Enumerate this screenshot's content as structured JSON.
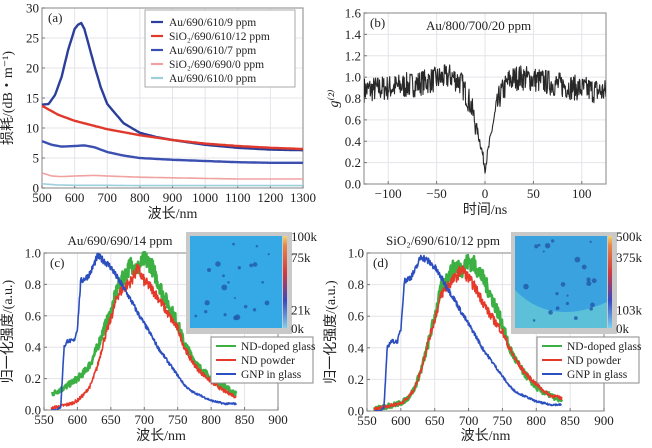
{
  "chart_data": [
    {
      "id": "a",
      "type": "line",
      "panel_label": "(a)",
      "title": "",
      "xlabel": "波长/nm",
      "ylabel": "损耗/(dB・m⁻¹)",
      "xlim": [
        500,
        1300
      ],
      "ylim": [
        0,
        30
      ],
      "xticks": [
        500,
        600,
        700,
        800,
        900,
        1000,
        1100,
        1200,
        1300
      ],
      "yticks": [
        0,
        5,
        10,
        15,
        20,
        25,
        30
      ],
      "grid": true,
      "legend_position": "top-right",
      "series": [
        {
          "name": "Au/690/610/9 ppm",
          "color": "#2b3f9a",
          "x": [
            500,
            520,
            540,
            560,
            580,
            600,
            610,
            620,
            630,
            640,
            660,
            680,
            700,
            750,
            800,
            850,
            900,
            950,
            1000,
            1100,
            1200,
            1300
          ],
          "y": [
            13.9,
            14.0,
            15.5,
            18.5,
            23,
            26.5,
            27.2,
            27.5,
            26.5,
            24.5,
            20.5,
            16.8,
            14.0,
            10.8,
            9.2,
            8.5,
            8.0,
            7.6,
            7.2,
            6.7,
            6.4,
            6.3
          ]
        },
        {
          "name": "SiO₂/690/610/12 ppm",
          "color": "#e0392c",
          "x": [
            500,
            550,
            600,
            650,
            700,
            750,
            800,
            850,
            900,
            1000,
            1100,
            1200,
            1300
          ],
          "y": [
            13.7,
            12.2,
            11.2,
            10.5,
            9.8,
            9.3,
            8.8,
            8.4,
            8.0,
            7.4,
            7.0,
            6.7,
            6.5
          ]
        },
        {
          "name": "Au/690/610/7 ppm",
          "color": "#3a4fb0",
          "x": [
            500,
            530,
            560,
            600,
            630,
            660,
            700,
            750,
            800,
            900,
            1000,
            1100,
            1200,
            1300
          ],
          "y": [
            7.8,
            7.2,
            6.9,
            7.0,
            7.1,
            6.8,
            6.0,
            5.4,
            5.0,
            4.7,
            4.5,
            4.3,
            4.2,
            4.2
          ]
        },
        {
          "name": "SiO₂/690/690/0 ppm",
          "color": "#f0a2a0",
          "x": [
            500,
            530,
            560,
            600,
            660,
            700,
            800,
            900,
            1000,
            1100,
            1200,
            1300
          ],
          "y": [
            2.5,
            2.0,
            1.9,
            2.0,
            2.1,
            2.0,
            1.8,
            1.7,
            1.6,
            1.5,
            1.5,
            1.5
          ]
        },
        {
          "name": "Au/690/610/0 ppm",
          "color": "#9ccfdc",
          "x": [
            500,
            550,
            600,
            700,
            800,
            900,
            1000,
            1100,
            1200,
            1300
          ],
          "y": [
            0.7,
            0.5,
            0.45,
            0.45,
            0.4,
            0.4,
            0.4,
            0.4,
            0.4,
            0.4
          ]
        }
      ]
    },
    {
      "id": "b",
      "type": "line",
      "panel_label": "(b)",
      "title": "Au/800/700/20 ppm",
      "xlabel": "时间/ns",
      "ylabel": "g⁽²⁾",
      "xlim": [
        -125,
        125
      ],
      "ylim": [
        0.0,
        1.6
      ],
      "xticks": [
        -100,
        -50,
        0,
        50,
        100
      ],
      "yticks": [
        0.0,
        0.2,
        0.4,
        0.6,
        0.8,
        1.0,
        1.2,
        1.4,
        1.6
      ],
      "grid": true,
      "series": [
        {
          "name": "g2",
          "color": "#111111",
          "x": [
            -125,
            -100,
            -75,
            -50,
            -35,
            -25,
            -15,
            -8,
            -4,
            -1,
            0,
            1,
            4,
            8,
            15,
            25,
            35,
            50,
            75,
            100,
            125
          ],
          "y": [
            0.88,
            0.9,
            0.93,
            0.98,
            1.01,
            0.95,
            0.75,
            0.5,
            0.35,
            0.2,
            0.15,
            0.2,
            0.35,
            0.55,
            0.82,
            0.97,
            1.0,
            0.98,
            0.93,
            0.89,
            0.86
          ],
          "noise_amplitude": 0.12
        }
      ]
    },
    {
      "id": "c",
      "type": "line",
      "panel_label": "(c)",
      "title": "Au/690/690/14 ppm",
      "xlabel": "波长/nm",
      "ylabel": "归一化强度/(a.u.)",
      "xlim": [
        550,
        900
      ],
      "ylim": [
        0.0,
        1.0
      ],
      "xticks": [
        550,
        600,
        650,
        700,
        750,
        800,
        850,
        900
      ],
      "yticks": [
        0.0,
        0.2,
        0.4,
        0.6,
        0.8,
        1.0
      ],
      "grid": true,
      "legend_position": "right",
      "inset": {
        "colorbar_ticks": [
          "100k",
          "75k",
          "21k",
          "0k"
        ]
      },
      "series": [
        {
          "name": "ND-doped glass",
          "color": "#3cb043",
          "x": [
            561,
            570,
            580,
            590,
            600,
            610,
            620,
            630,
            640,
            650,
            660,
            670,
            680,
            690,
            700,
            710,
            720,
            730,
            740,
            750,
            760,
            770,
            780,
            790,
            800,
            810,
            820,
            830,
            838
          ],
          "y": [
            0.1,
            0.12,
            0.14,
            0.17,
            0.2,
            0.24,
            0.3,
            0.4,
            0.52,
            0.62,
            0.78,
            0.85,
            0.93,
            0.9,
            0.96,
            0.93,
            0.82,
            0.72,
            0.64,
            0.55,
            0.42,
            0.35,
            0.28,
            0.24,
            0.2,
            0.17,
            0.15,
            0.12,
            0.1
          ]
        },
        {
          "name": "ND powder",
          "color": "#e53a2a",
          "x": [
            561,
            570,
            580,
            590,
            600,
            610,
            620,
            630,
            640,
            650,
            660,
            670,
            680,
            690,
            700,
            710,
            720,
            730,
            740,
            750,
            760,
            770,
            780,
            790,
            800,
            810,
            820,
            830,
            838
          ],
          "y": [
            0.01,
            0.02,
            0.03,
            0.04,
            0.06,
            0.1,
            0.16,
            0.28,
            0.45,
            0.58,
            0.73,
            0.78,
            0.82,
            0.9,
            0.82,
            0.78,
            0.72,
            0.65,
            0.58,
            0.52,
            0.4,
            0.32,
            0.26,
            0.22,
            0.18,
            0.15,
            0.12,
            0.1,
            0.08
          ]
        },
        {
          "name": "GNP in glass",
          "color": "#2c4fbf",
          "x": [
            561,
            570,
            575,
            580,
            585,
            595,
            600,
            605,
            615,
            620,
            630,
            640,
            650,
            660,
            670,
            680,
            690,
            700,
            710,
            720,
            730,
            740,
            750,
            760,
            770,
            780,
            790,
            800,
            810,
            820,
            830,
            838
          ],
          "y": [
            0.0,
            0.0,
            0.02,
            0.4,
            0.44,
            0.44,
            0.52,
            0.82,
            0.85,
            0.88,
            0.98,
            0.95,
            0.91,
            0.84,
            0.77,
            0.7,
            0.62,
            0.55,
            0.48,
            0.4,
            0.34,
            0.28,
            0.22,
            0.16,
            0.12,
            0.1,
            0.08,
            0.06,
            0.05,
            0.04,
            0.04,
            0.04
          ]
        }
      ]
    },
    {
      "id": "d",
      "type": "line",
      "panel_label": "(d)",
      "title": "SiO₂/690/610/12 ppm",
      "xlabel": "波长/nm",
      "ylabel": "归一化强度/(a.u.)",
      "xlim": [
        550,
        900
      ],
      "ylim": [
        0.0,
        1.0
      ],
      "xticks": [
        550,
        600,
        650,
        700,
        750,
        800,
        850,
        900
      ],
      "yticks": [
        0.0,
        0.2,
        0.4,
        0.6,
        0.8,
        1.0
      ],
      "grid": true,
      "legend_position": "right",
      "inset": {
        "colorbar_ticks": [
          "500k",
          "375k",
          "103k",
          "0k"
        ]
      },
      "series": [
        {
          "name": "ND-doped glass",
          "color": "#3cb043",
          "x": [
            561,
            570,
            580,
            590,
            600,
            610,
            620,
            630,
            640,
            650,
            660,
            670,
            680,
            690,
            700,
            710,
            720,
            730,
            740,
            750,
            760,
            770,
            780,
            790,
            800,
            810,
            820,
            830,
            838
          ],
          "y": [
            0.01,
            0.02,
            0.03,
            0.04,
            0.05,
            0.08,
            0.14,
            0.26,
            0.42,
            0.6,
            0.78,
            0.85,
            0.92,
            0.9,
            0.95,
            0.92,
            0.85,
            0.76,
            0.66,
            0.55,
            0.4,
            0.32,
            0.25,
            0.2,
            0.15,
            0.12,
            0.1,
            0.08,
            0.06
          ]
        },
        {
          "name": "ND powder",
          "color": "#e53a2a",
          "x": [
            561,
            570,
            580,
            590,
            600,
            610,
            620,
            630,
            640,
            650,
            660,
            670,
            680,
            690,
            700,
            710,
            720,
            730,
            740,
            750,
            760,
            770,
            780,
            790,
            800,
            810,
            820,
            830,
            838
          ],
          "y": [
            0.01,
            0.02,
            0.03,
            0.04,
            0.05,
            0.08,
            0.14,
            0.26,
            0.43,
            0.58,
            0.74,
            0.8,
            0.84,
            0.9,
            0.84,
            0.78,
            0.7,
            0.62,
            0.56,
            0.5,
            0.4,
            0.32,
            0.26,
            0.21,
            0.17,
            0.13,
            0.1,
            0.09,
            0.08
          ]
        },
        {
          "name": "GNP in glass",
          "color": "#2c4fbf",
          "x": [
            561,
            570,
            575,
            580,
            585,
            595,
            600,
            605,
            615,
            620,
            630,
            640,
            650,
            660,
            670,
            680,
            690,
            700,
            710,
            720,
            730,
            740,
            750,
            760,
            770,
            780,
            790,
            800,
            810,
            820,
            830,
            838
          ],
          "y": [
            0.0,
            0.0,
            0.02,
            0.4,
            0.44,
            0.44,
            0.52,
            0.82,
            0.85,
            0.88,
            0.98,
            0.95,
            0.91,
            0.84,
            0.77,
            0.7,
            0.62,
            0.55,
            0.48,
            0.4,
            0.34,
            0.28,
            0.22,
            0.16,
            0.12,
            0.1,
            0.08,
            0.06,
            0.05,
            0.04,
            0.04,
            0.04
          ]
        }
      ]
    }
  ]
}
